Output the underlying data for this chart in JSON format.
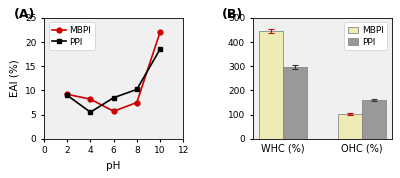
{
  "left": {
    "label": "(A)",
    "mbpi_x": [
      2,
      4,
      6,
      8,
      10
    ],
    "mbpi_y": [
      9.2,
      8.2,
      5.7,
      7.5,
      22.0
    ],
    "ppi_x": [
      2,
      4,
      6,
      8,
      10
    ],
    "ppi_y": [
      9.0,
      5.5,
      8.5,
      10.2,
      18.5
    ],
    "mbpi_color": "#cc0000",
    "ppi_color": "#000000",
    "xlabel": "pH",
    "ylabel": "EAI (%)",
    "xlim": [
      0,
      12
    ],
    "ylim": [
      0,
      25
    ],
    "xticks": [
      0,
      2,
      4,
      6,
      8,
      10,
      12
    ],
    "yticks": [
      0,
      5,
      10,
      15,
      20,
      25
    ]
  },
  "right": {
    "label": "(B)",
    "categories": [
      "WHC (%)",
      "OHC (%)"
    ],
    "mbpi_values": [
      445,
      103
    ],
    "ppi_values": [
      297,
      162
    ],
    "mbpi_err": [
      7,
      5
    ],
    "ppi_err": [
      8,
      4
    ],
    "mbpi_color": "#eeebb5",
    "ppi_color": "#999999",
    "ylim": [
      0,
      500
    ],
    "yticks": [
      0,
      100,
      200,
      300,
      400,
      500
    ]
  }
}
